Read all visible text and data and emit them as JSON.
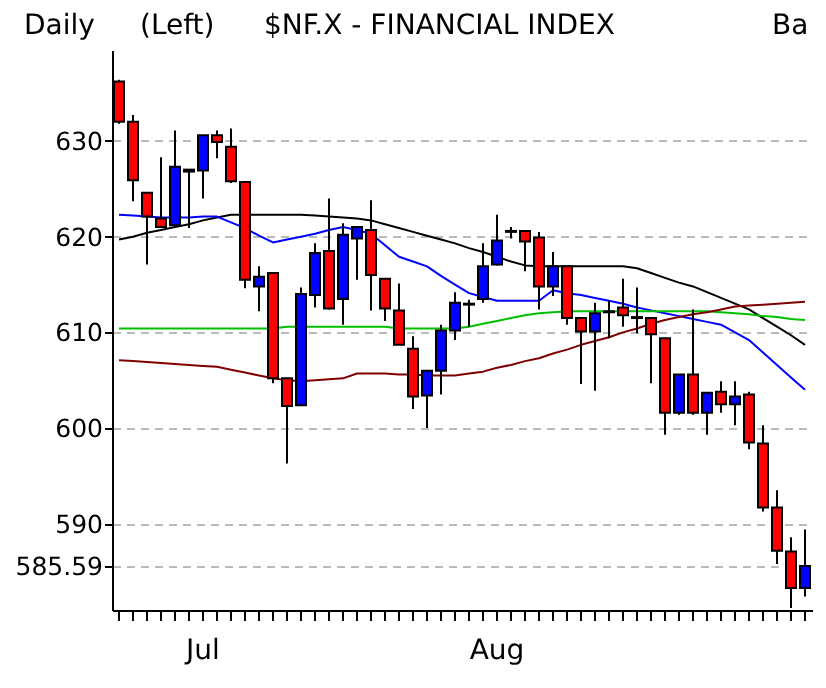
{
  "chart_data": {
    "type": "candlestick",
    "title": "$NF.X - FINANCIAL INDEX",
    "annotations": [
      "Daily",
      "(Left)",
      "Ba"
    ],
    "categories": [
      null,
      null,
      null,
      null,
      null,
      null,
      "Jul",
      null,
      null,
      null,
      null,
      null,
      null,
      null,
      null,
      null,
      null,
      null,
      null,
      null,
      null,
      null,
      null,
      null,
      null,
      null,
      null,
      "Aug",
      null,
      null,
      null,
      null,
      null,
      null,
      null,
      null,
      null,
      null,
      null,
      null,
      null,
      null,
      null,
      null,
      null,
      null,
      null,
      null,
      null,
      null
    ],
    "ohlc": [
      [
        636.2,
        636.4,
        631.8,
        632.0
      ],
      [
        632.0,
        632.7,
        623.7,
        625.9
      ],
      [
        624.6,
        624.6,
        617.1,
        622.1
      ],
      [
        621.9,
        628.3,
        620.9,
        621.0
      ],
      [
        621.2,
        631.1,
        620.9,
        627.3
      ],
      [
        626.8,
        627.0,
        620.9,
        627.0
      ],
      [
        626.9,
        630.6,
        624.0,
        630.6
      ],
      [
        630.6,
        631.1,
        628.2,
        629.9
      ],
      [
        629.4,
        631.3,
        625.6,
        625.8
      ],
      [
        625.7,
        625.7,
        614.6,
        615.5
      ],
      [
        614.8,
        616.9,
        612.2,
        615.8
      ],
      [
        616.2,
        616.2,
        604.7,
        605.2
      ],
      [
        605.2,
        605.2,
        596.3,
        602.3
      ],
      [
        602.4,
        614.7,
        602.3,
        614.0
      ],
      [
        613.9,
        619.3,
        612.6,
        618.3
      ],
      [
        618.5,
        624.0,
        612.4,
        612.5
      ],
      [
        613.5,
        621.4,
        610.8,
        620.2
      ],
      [
        619.8,
        621.0,
        615.5,
        621.0
      ],
      [
        620.7,
        623.8,
        612.3,
        616.0
      ],
      [
        615.6,
        615.6,
        611.2,
        612.5
      ],
      [
        612.3,
        615.1,
        608.7,
        608.7
      ],
      [
        608.3,
        609.6,
        602.0,
        603.3
      ],
      [
        603.4,
        606.0,
        600.0,
        606.0
      ],
      [
        606.0,
        610.8,
        603.5,
        610.2
      ],
      [
        610.2,
        614.2,
        609.2,
        613.1
      ],
      [
        612.9,
        613.4,
        610.6,
        613.0
      ],
      [
        613.5,
        619.3,
        613.1,
        616.9
      ],
      [
        617.1,
        622.3,
        617.0,
        619.6
      ],
      [
        620.6,
        621.0,
        619.8,
        620.5
      ],
      [
        620.6,
        620.6,
        616.4,
        619.5
      ],
      [
        619.9,
        620.5,
        612.4,
        614.8
      ],
      [
        614.8,
        618.4,
        613.8,
        616.9
      ],
      [
        616.9,
        616.9,
        610.8,
        611.5
      ],
      [
        611.5,
        611.5,
        604.6,
        610.1
      ],
      [
        610.1,
        613.1,
        603.9,
        612.0
      ],
      [
        612.1,
        613.3,
        609.4,
        612.2
      ],
      [
        612.6,
        615.6,
        610.6,
        611.8
      ],
      [
        611.6,
        614.7,
        609.9,
        611.5
      ],
      [
        611.5,
        611.5,
        604.7,
        609.8
      ],
      [
        609.4,
        609.4,
        599.3,
        601.6
      ],
      [
        601.6,
        605.6,
        601.4,
        605.6
      ],
      [
        605.6,
        612.4,
        601.4,
        601.6
      ],
      [
        601.6,
        603.7,
        599.3,
        603.7
      ],
      [
        603.8,
        604.9,
        601.6,
        602.5
      ],
      [
        602.5,
        604.9,
        600.3,
        603.3
      ],
      [
        603.5,
        603.8,
        597.8,
        598.5
      ],
      [
        598.4,
        600.3,
        591.3,
        591.7
      ],
      [
        591.7,
        593.5,
        585.8,
        587.2
      ],
      [
        587.1,
        588.6,
        581.2,
        583.3
      ],
      [
        583.3,
        589.4,
        582.4,
        585.59
      ]
    ],
    "colors": [
      "#ff0000",
      "#ff0000",
      "#ff0000",
      "#ff0000",
      "#0000ff",
      "#0000ff",
      "#0000ff",
      "#ff0000",
      "#ff0000",
      "#ff0000",
      "#0000ff",
      "#ff0000",
      "#ff0000",
      "#0000ff",
      "#0000ff",
      "#ff0000",
      "#0000ff",
      "#0000ff",
      "#ff0000",
      "#ff0000",
      "#ff0000",
      "#ff0000",
      "#0000ff",
      "#0000ff",
      "#0000ff",
      "#0000ff",
      "#0000ff",
      "#0000ff",
      "#ff0000",
      "#ff0000",
      "#ff0000",
      "#0000ff",
      "#ff0000",
      "#ff0000",
      "#0000ff",
      "#0000ff",
      "#ff0000",
      "#ff0000",
      "#ff0000",
      "#ff0000",
      "#0000ff",
      "#ff0000",
      "#0000ff",
      "#ff0000",
      "#0000ff",
      "#ff0000",
      "#ff0000",
      "#ff0000",
      "#ff0000",
      "#0000ff"
    ],
    "series": [
      {
        "type": "line",
        "color": "#000000",
        "values": [
          619.7,
          620.0,
          620.4,
          620.7,
          621.0,
          621.3,
          621.7,
          622.0,
          622.3,
          622.3,
          622.3,
          622.3,
          622.3,
          622.3,
          622.2,
          622.1,
          622.0,
          621.9,
          621.7,
          621.3,
          620.9,
          620.5,
          620.1,
          619.7,
          619.3,
          618.8,
          618.4,
          617.9,
          617.4,
          617.0,
          616.9,
          616.9,
          616.9,
          616.9,
          616.9,
          616.9,
          616.9,
          616.7,
          616.2,
          615.7,
          615.2,
          614.8,
          614.2,
          613.6,
          613.0,
          612.4,
          611.5,
          610.6,
          609.7,
          608.7
        ]
      },
      {
        "type": "line",
        "color": "#0000ff",
        "values": [
          622.3,
          622.2,
          622.1,
          622.0,
          622.0,
          622.0,
          622.1,
          622.1,
          621.5,
          620.9,
          620.1,
          619.4,
          619.7,
          620.0,
          620.3,
          620.7,
          621.0,
          620.7,
          620.3,
          619.1,
          617.9,
          617.4,
          616.9,
          615.9,
          615.0,
          614.1,
          613.7,
          613.3,
          613.3,
          613.3,
          613.3,
          614.4,
          614.1,
          613.9,
          613.6,
          613.3,
          613.0,
          612.6,
          612.3,
          612.0,
          611.7,
          611.4,
          611.1,
          610.8,
          610.0,
          609.2,
          607.9,
          606.6,
          605.3,
          604.0
        ]
      },
      {
        "type": "line",
        "color": "#00c000",
        "values": [
          610.4,
          610.4,
          610.4,
          610.4,
          610.4,
          610.4,
          610.4,
          610.4,
          610.4,
          610.4,
          610.4,
          610.4,
          610.6,
          610.6,
          610.6,
          610.6,
          610.6,
          610.6,
          610.6,
          610.6,
          610.4,
          610.4,
          610.4,
          610.4,
          610.4,
          610.6,
          610.9,
          611.2,
          611.5,
          611.8,
          612.0,
          612.1,
          612.2,
          612.2,
          612.2,
          612.2,
          612.2,
          612.2,
          612.2,
          612.2,
          612.2,
          612.2,
          612.2,
          612.1,
          612.0,
          611.9,
          611.7,
          611.6,
          611.4,
          611.3
        ]
      },
      {
        "type": "line",
        "color": "#800000",
        "values": [
          607.1,
          607.0,
          606.9,
          606.8,
          606.7,
          606.6,
          606.5,
          606.4,
          606.1,
          605.8,
          605.5,
          605.2,
          605.0,
          604.9,
          605.0,
          605.1,
          605.2,
          605.7,
          605.7,
          605.7,
          605.6,
          605.6,
          605.5,
          605.5,
          605.5,
          605.7,
          605.9,
          606.3,
          606.6,
          607.0,
          607.3,
          607.8,
          608.2,
          608.7,
          609.1,
          609.5,
          610.0,
          610.4,
          610.9,
          611.3,
          611.6,
          611.9,
          612.1,
          612.4,
          612.7,
          612.8,
          612.9,
          613.0,
          613.1,
          613.2
        ]
      }
    ],
    "ylim": [
      581,
      639.5
    ],
    "yticks": [
      585.59,
      590,
      600,
      610,
      620,
      630
    ],
    "grid": "y"
  }
}
